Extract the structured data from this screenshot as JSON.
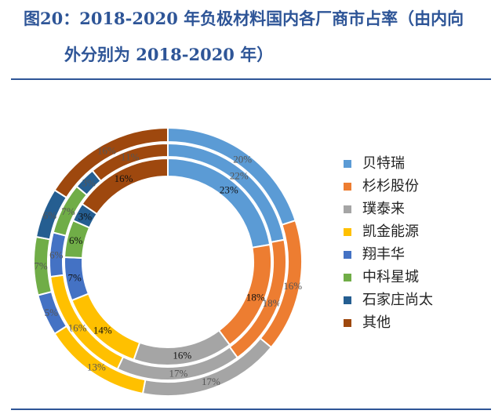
{
  "title_line1": "图20：2018-2020 年负极材料国内各厂商市占率（由内向",
  "title_line2": "外分别为 2018-2020 年）",
  "chart_data": {
    "type": "donut",
    "title": "2018-2020 年负极材料国内各厂商市占率（由内向外分别为 2018-2020 年）",
    "categories": [
      "贝特瑞",
      "杉杉股份",
      "璞泰来",
      "凯金能源",
      "翔丰华",
      "中科星城",
      "石家庄尚太",
      "其他"
    ],
    "colors": [
      "#5B9BD5",
      "#ED7D31",
      "#A5A5A5",
      "#FFC000",
      "#4472C4",
      "#70AD47",
      "#255E91",
      "#9E480E"
    ],
    "series": [
      {
        "year": "2018",
        "values": [
          23,
          18,
          16,
          14,
          7,
          6,
          3,
          16
        ],
        "labels": [
          "23%",
          "18%",
          "16%",
          "14%",
          "7%",
          "6%",
          "3%",
          "16%"
        ]
      },
      {
        "year": "2019",
        "values": [
          22,
          18,
          17,
          16,
          6,
          7,
          3,
          11
        ],
        "labels": [
          "22%",
          "18%",
          "17%",
          "16%",
          "6%",
          "7%",
          "3%",
          "11%"
        ]
      },
      {
        "year": "2020",
        "values": [
          20,
          16,
          17,
          13,
          5,
          7,
          6,
          16
        ],
        "labels": [
          "20%",
          "16%",
          "17%",
          "13%",
          "5%",
          "7%",
          "6%",
          "16%"
        ]
      }
    ],
    "legend_position": "right"
  }
}
